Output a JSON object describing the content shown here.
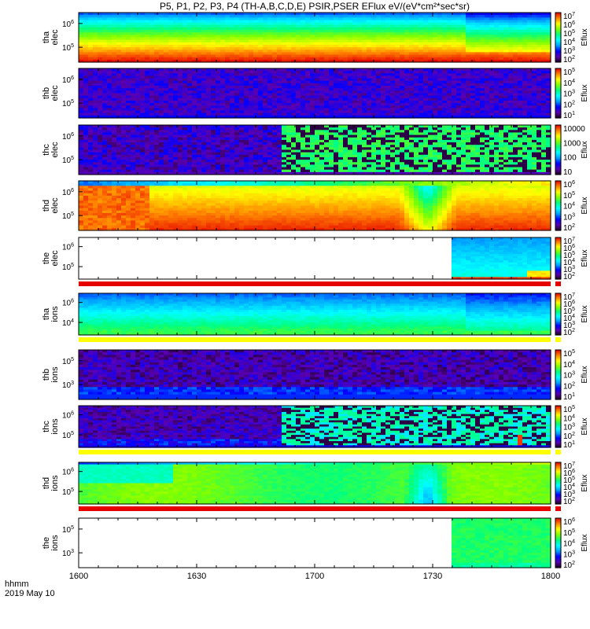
{
  "title": "P5, P1, P2, P3, P4 (TH-A,B,C,D,E) PSIR,PSER EFlux eV/(eV*cm²*sec*sr)",
  "x_axis": {
    "label_line1": "hhmm",
    "label_line2": "2019 May 10"
  },
  "colors": {
    "red_divider": "#e60000",
    "yellow_divider": "#ffff00",
    "colormap": [
      "#1a001a",
      "#5a00b4",
      "#0000ff",
      "#00a0ff",
      "#00ffff",
      "#00ff80",
      "#80ff00",
      "#ffff00",
      "#ff8000",
      "#e60000"
    ]
  },
  "chart_data": {
    "type": "heatmap",
    "x_ticks": [
      "1600",
      "1630",
      "1700",
      "1730",
      "1800"
    ],
    "x_range": [
      "16:00",
      "18:00"
    ],
    "panels": [
      {
        "probe": "tha",
        "species": "elec",
        "ylabel": [
          "tha",
          "elec"
        ],
        "y_ticks": [
          "10^6",
          "10^5"
        ],
        "colorbar": {
          "label": "Eflux",
          "ticks": [
            "10^7",
            "10^6",
            "10^5",
            "10^4",
            "10^3",
            "10^2"
          ]
        },
        "pattern": "tha_elec",
        "bottom_divider": ""
      },
      {
        "probe": "thb",
        "species": "elec",
        "ylabel": [
          "thb",
          "elec"
        ],
        "y_ticks": [
          "10^6",
          "10^5"
        ],
        "colorbar": {
          "label": "Eflux",
          "ticks": [
            "10^5",
            "10^4",
            "10^3",
            "10^2",
            "10^1"
          ]
        },
        "pattern": "thb_elec",
        "bottom_divider": ""
      },
      {
        "probe": "thc",
        "species": "elec",
        "ylabel": [
          "thc",
          "elec"
        ],
        "y_ticks": [
          "10^6",
          "10^5"
        ],
        "colorbar": {
          "label": "Eflux",
          "ticks": [
            "10000",
            "1000",
            "100",
            "10"
          ]
        },
        "pattern": "thc_elec",
        "bottom_divider": ""
      },
      {
        "probe": "thd",
        "species": "elec",
        "ylabel": [
          "thd",
          "elec"
        ],
        "y_ticks": [
          "10^6",
          "10^5"
        ],
        "colorbar": {
          "label": "Eflux",
          "ticks": [
            "10^6",
            "10^5",
            "10^4",
            "10^3",
            "10^2"
          ]
        },
        "pattern": "thd_elec",
        "bottom_divider": ""
      },
      {
        "probe": "the",
        "species": "elec",
        "ylabel": [
          "the",
          "elec"
        ],
        "y_ticks": [
          "10^6",
          "10^5"
        ],
        "colorbar": {
          "label": "Eflux",
          "ticks": [
            "10^7",
            "10^6",
            "10^5",
            "10^4",
            "10^3",
            "10^2"
          ]
        },
        "pattern": "the_elec",
        "bottom_divider": "red"
      },
      {
        "probe": "tha",
        "species": "ions",
        "ylabel": [
          "tha",
          "ions"
        ],
        "y_ticks": [
          "10^6",
          "10^4"
        ],
        "colorbar": {
          "label": "Eflux",
          "ticks": [
            "10^7",
            "10^6",
            "10^5",
            "10^4",
            "10^3",
            "10^2"
          ]
        },
        "pattern": "tha_ions",
        "bottom_divider": "yellow"
      },
      {
        "probe": "thb",
        "species": "ions",
        "ylabel": [
          "thb",
          "ions"
        ],
        "y_ticks": [
          "10^5",
          "10^3"
        ],
        "colorbar": {
          "label": "Eflux",
          "ticks": [
            "10^5",
            "10^4",
            "10^3",
            "10^2",
            "10^1"
          ]
        },
        "pattern": "thb_ions",
        "bottom_divider": ""
      },
      {
        "probe": "thc",
        "species": "ions",
        "ylabel": [
          "thc",
          "ions"
        ],
        "y_ticks": [
          "10^6",
          "10^5"
        ],
        "colorbar": {
          "label": "Eflux",
          "ticks": [
            "10^5",
            "10^4",
            "10^3",
            "10^2",
            "10^1"
          ]
        },
        "pattern": "thc_ions",
        "bottom_divider": "yellow"
      },
      {
        "probe": "thd",
        "species": "ions",
        "ylabel": [
          "thd",
          "ions"
        ],
        "y_ticks": [
          "10^6",
          "10^5"
        ],
        "colorbar": {
          "label": "Eflux",
          "ticks": [
            "10^7",
            "10^6",
            "10^5",
            "10^4",
            "10^3",
            "10^2"
          ]
        },
        "pattern": "thd_ions",
        "bottom_divider": "red"
      },
      {
        "probe": "the",
        "species": "ions",
        "ylabel": [
          "the",
          "ions"
        ],
        "y_ticks": [
          "10^5",
          "10^3"
        ],
        "colorbar": {
          "label": "Eflux",
          "ticks": [
            "10^6",
            "10^5",
            "10^4",
            "10^3",
            "10^2"
          ]
        },
        "pattern": "the_ions",
        "bottom_divider": ""
      }
    ]
  }
}
